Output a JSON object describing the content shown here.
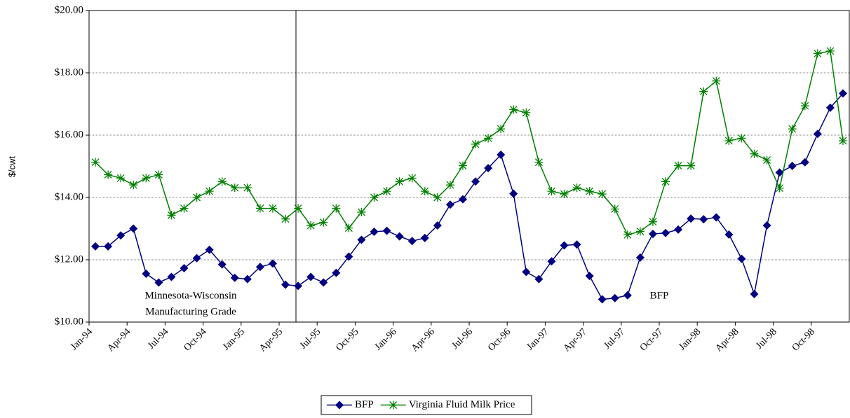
{
  "chart_data": {
    "type": "line",
    "ylabel": "$/cwt",
    "ylim": [
      10,
      20
    ],
    "yticks": [
      {
        "value": 10,
        "label": "$10.00"
      },
      {
        "value": 12,
        "label": "$12.00"
      },
      {
        "value": 14,
        "label": "$14.00"
      },
      {
        "value": 16,
        "label": "$16.00"
      },
      {
        "value": 18,
        "label": "$18.00"
      },
      {
        "value": 20,
        "label": "$20.00"
      }
    ],
    "grid": true,
    "legend": "bottom",
    "categories": [
      "Jan-94",
      null,
      null,
      "Apr-94",
      null,
      null,
      "Jul-94",
      null,
      null,
      "Oct-94",
      null,
      null,
      "Jan-95",
      null,
      null,
      "Apr-95",
      null,
      null,
      "Jul-95",
      null,
      null,
      "Oct-95",
      null,
      null,
      "Jan-96",
      null,
      null,
      "Apr-96",
      null,
      null,
      "Jul-96",
      null,
      null,
      "Oct-96",
      null,
      null,
      "Jan-97",
      null,
      null,
      "Apr-97",
      null,
      null,
      "Jul-97",
      null,
      null,
      "Oct-97",
      null,
      null,
      "Jan-98",
      null,
      null,
      "Apr-98",
      null,
      null,
      "Jul-98",
      null,
      null,
      "Oct-98",
      null,
      null
    ],
    "series": [
      {
        "name": "BFP",
        "color": "#000080",
        "marker": "diamond",
        "values": [
          12.43,
          12.43,
          12.78,
          13.0,
          11.55,
          11.27,
          11.45,
          11.73,
          12.05,
          12.32,
          11.85,
          11.42,
          11.38,
          11.77,
          11.88,
          11.2,
          11.16,
          11.45,
          11.27,
          11.58,
          12.1,
          12.64,
          12.9,
          12.93,
          12.75,
          12.6,
          12.7,
          13.1,
          13.77,
          13.94,
          14.51,
          14.94,
          15.37,
          14.12,
          11.61,
          11.38,
          11.95,
          12.46,
          12.49,
          11.48,
          10.73,
          10.77,
          10.86,
          12.07,
          12.83,
          12.86,
          12.97,
          13.32,
          13.3,
          13.36,
          12.81,
          12.03,
          10.9,
          13.1,
          14.8,
          15.01,
          15.13,
          16.04,
          16.88,
          17.34
        ]
      },
      {
        "name": "Virginia Fluid Milk Price",
        "color": "#008000",
        "marker": "asterisk",
        "values": [
          15.13,
          14.73,
          14.62,
          14.4,
          14.62,
          14.73,
          13.43,
          13.65,
          14.0,
          14.2,
          14.51,
          14.31,
          14.31,
          13.65,
          13.65,
          13.31,
          13.65,
          13.1,
          13.2,
          13.65,
          13.02,
          13.53,
          14.0,
          14.2,
          14.51,
          14.62,
          14.2,
          14.0,
          14.4,
          15.02,
          15.71,
          15.9,
          16.2,
          16.82,
          16.72,
          15.13,
          14.2,
          14.11,
          14.31,
          14.2,
          14.11,
          13.63,
          12.8,
          12.91,
          13.22,
          14.51,
          15.02,
          15.02,
          17.4,
          17.74,
          15.82,
          15.9,
          15.4,
          15.2,
          14.3,
          16.2,
          16.94,
          18.62,
          18.7,
          15.82
        ]
      }
    ],
    "annotations": [
      "Minnesota-Wisconsin",
      "Manufacturing Grade",
      "BFP"
    ]
  }
}
